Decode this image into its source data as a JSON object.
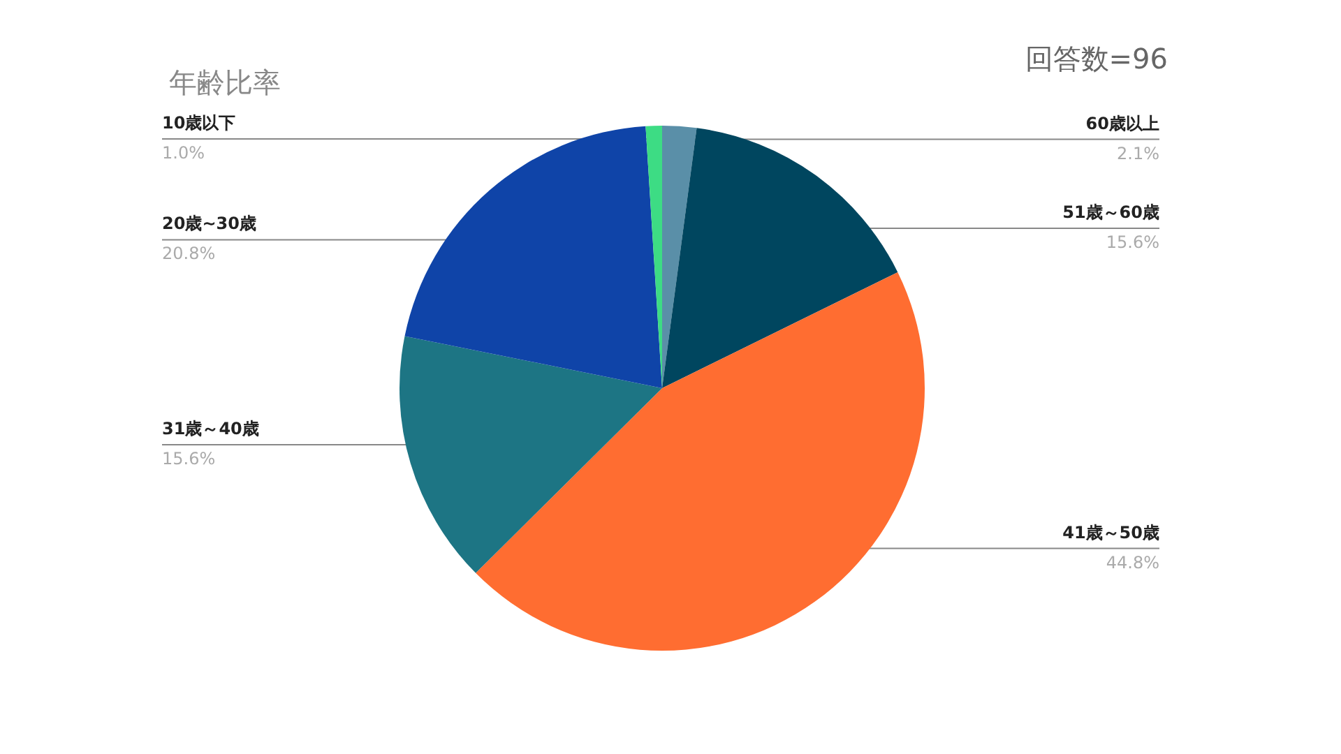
{
  "chart_data": {
    "type": "pie",
    "title": "年齢比率",
    "annotations": [
      "回答数=96"
    ],
    "categories": [
      "60歳以上",
      "51歳～60歳",
      "41歳～50歳",
      "31歳～40歳",
      "20歳~30歳",
      "10歳以下"
    ],
    "values": [
      2.1,
      15.6,
      44.8,
      15.6,
      20.8,
      1.0
    ],
    "value_labels": [
      "2.1%",
      "15.6%",
      "44.8%",
      "15.6%",
      "20.8%",
      "1.0%"
    ],
    "colors": [
      "#5a8fa8",
      "#00465f",
      "#ff6d31",
      "#1d7584",
      "#0f44a8",
      "#3ddc84"
    ],
    "legend": false
  }
}
